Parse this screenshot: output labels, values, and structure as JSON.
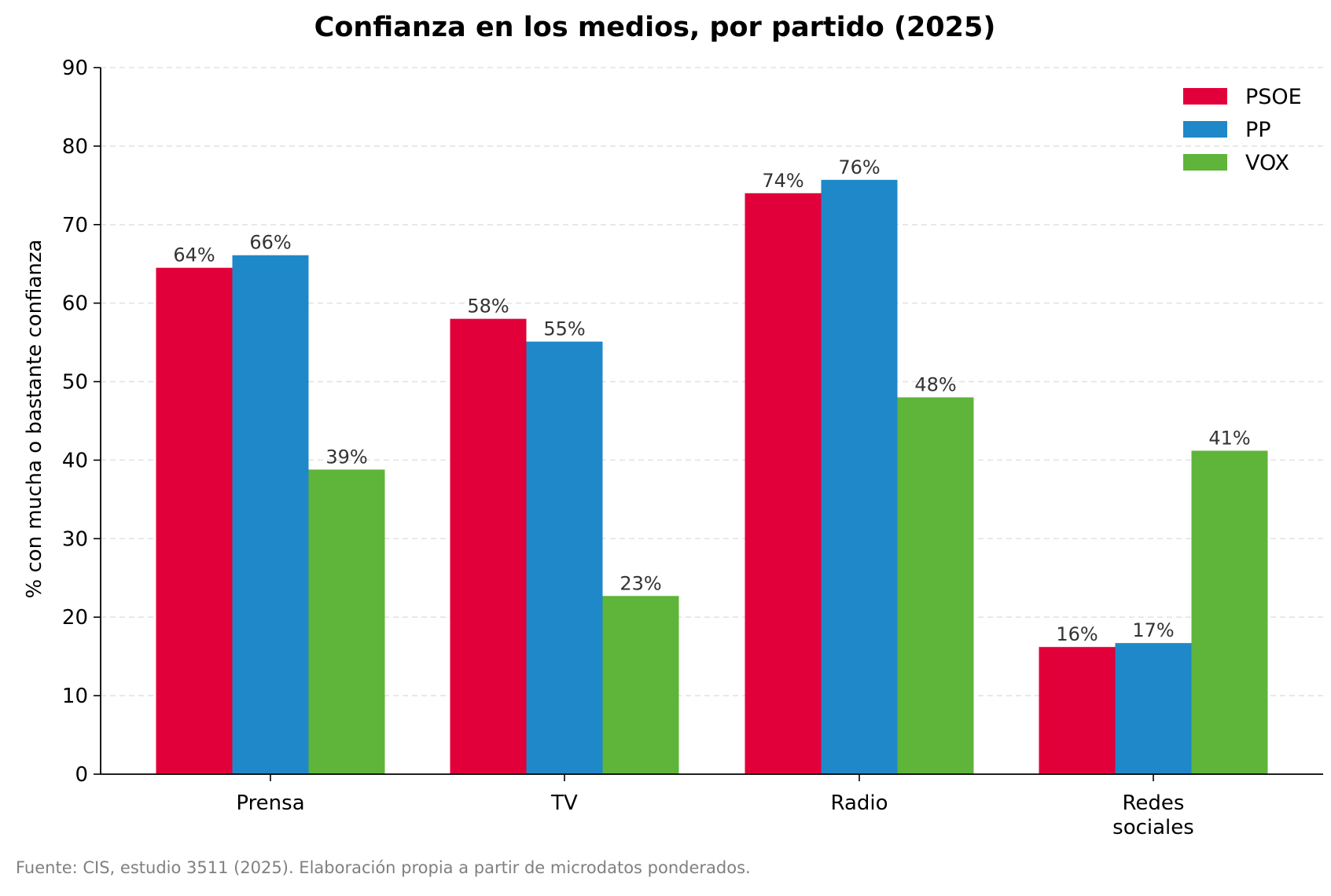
{
  "chart_data": {
    "type": "bar",
    "title": "Confianza en los medios, por partido (2025)",
    "xlabel": "",
    "ylabel": "% con mucha o bastante confianza",
    "categories": [
      [
        "Prensa"
      ],
      [
        "TV"
      ],
      [
        "Radio"
      ],
      [
        "Redes",
        "sociales"
      ]
    ],
    "series": [
      {
        "name": "PSOE",
        "color": "#E1003A",
        "values": [
          64.5,
          58,
          74,
          16.2
        ],
        "labels": [
          "64%",
          "58%",
          "74%",
          "16%"
        ]
      },
      {
        "name": "PP",
        "color": "#1F88C8",
        "values": [
          66.1,
          55.1,
          75.7,
          16.7
        ],
        "labels": [
          "66%",
          "55%",
          "76%",
          "17%"
        ]
      },
      {
        "name": "VOX",
        "color": "#5FB43A",
        "values": [
          38.8,
          22.7,
          48,
          41.2
        ],
        "labels": [
          "39%",
          "23%",
          "48%",
          "41%"
        ]
      }
    ],
    "ylim": [
      0,
      90
    ],
    "yticks": [
      0,
      10,
      20,
      30,
      40,
      50,
      60,
      70,
      80,
      90
    ],
    "grid": "horizontal dashed",
    "legend_position": "top-right"
  },
  "source_note": "Fuente: CIS, estudio 3511 (2025). Elaboración propia a partir de microdatos ponderados."
}
